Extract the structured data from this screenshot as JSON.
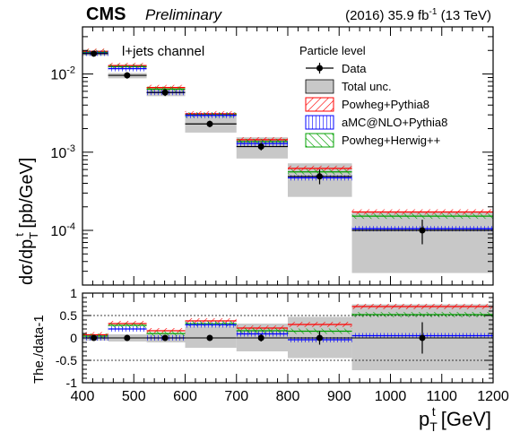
{
  "header": {
    "experiment": "CMS",
    "status": "Preliminary",
    "lumi_prefix": "(2016) 35.9 fb",
    "lumi_exp": "-1",
    "lumi_suffix": " (13 TeV)"
  },
  "colors": {
    "data": "#000000",
    "total_unc_fill": "#c8c8c8",
    "powheg_pythia8": "#ff0000",
    "amcatnlo_pythia8": "#0000ff",
    "powheg_herwig": "#00a000"
  },
  "chart_data": {
    "type": "bar",
    "channel_label": "l+jets channel",
    "legend_title": "Particle level",
    "legend_placement": "top-right",
    "xlabel": {
      "main": "p",
      "sub": "T",
      "sup": "t",
      "unit": " [GeV]"
    },
    "ylabel_top": "dσ/dp",
    "ylabel_top_sub": "T",
    "ylabel_top_sup": "t",
    "ylabel_top_unit": " [pb/GeV]",
    "ylabel_bottom": "The./data-1",
    "x_ticks": [
      "400",
      "500",
      "600",
      "700",
      "800",
      "900",
      "1000",
      "1100",
      "1200"
    ],
    "x_tick_values": [
      400,
      500,
      600,
      700,
      800,
      900,
      1000,
      1100,
      1200
    ],
    "xlim": [
      400,
      1200
    ],
    "y_top_scale": "log",
    "y_top_lim": [
      2e-05,
      0.04
    ],
    "y_top_ticks": [
      {
        "base": "10",
        "exp": "-2",
        "value": 0.01
      },
      {
        "base": "10",
        "exp": "-3",
        "value": 0.001
      },
      {
        "base": "10",
        "exp": "-4",
        "value": 0.0001
      }
    ],
    "y_bottom_lim": [
      -1,
      1
    ],
    "y_bottom_ticks": [
      "1",
      "0.5",
      "0",
      "-0.5",
      "-1"
    ],
    "y_bottom_tick_values": [
      1,
      0.5,
      0,
      -0.5,
      -1
    ],
    "bin_edges": [
      400,
      450,
      525,
      600,
      700,
      800,
      925,
      1200
    ],
    "data_x": [
      422,
      487,
      561,
      648,
      748,
      862,
      1062
    ],
    "data_y": [
      0.0182,
      0.0096,
      0.0058,
      0.0023,
      0.00118,
      0.00049,
      0.0001
    ],
    "total_unc_lo": [
      0.0171,
      0.0088,
      0.0052,
      0.00178,
      0.00083,
      0.000268,
      2.85e-05
    ],
    "total_unc_hi": [
      0.0193,
      0.0103,
      0.0064,
      0.0029,
      0.00155,
      0.00072,
      0.000175
    ],
    "data_err": [
      0.0006,
      0.0004,
      0.0003,
      0.0001,
      7e-05,
      8e-05,
      3e-05
    ],
    "series": [
      {
        "name": "Data",
        "style": "marker"
      },
      {
        "name": "Total unc.",
        "style": "band"
      },
      {
        "name": "Powheg+Pythia8",
        "values": [
          0.0195,
          0.0128,
          0.0067,
          0.0031,
          0.00144,
          0.00062,
          0.000172
        ]
      },
      {
        "name": "aMC@NLO+Pythia8",
        "values": [
          0.0184,
          0.0117,
          0.0058,
          0.00295,
          0.00129,
          0.00047,
          0.000105
        ]
      },
      {
        "name": "Powheg+Herwig++",
        "values": [
          0.0189,
          0.0124,
          0.0064,
          0.003,
          0.00137,
          0.00056,
          0.000152
        ]
      }
    ],
    "ratio": {
      "total_unc_lo": [
        -0.06,
        -0.08,
        -0.1,
        -0.22,
        -0.3,
        -0.45,
        -0.72
      ],
      "total_unc_hi": [
        0.06,
        0.08,
        0.1,
        0.26,
        0.32,
        0.47,
        0.75
      ],
      "data_err": [
        0.03,
        0.04,
        0.05,
        0.05,
        0.08,
        0.15,
        0.35
      ],
      "powheg_pythia8": [
        0.07,
        0.32,
        0.16,
        0.38,
        0.22,
        0.3,
        0.7
      ],
      "amcatnlo_pythia8": [
        0.0,
        0.2,
        0.0,
        0.29,
        0.09,
        -0.04,
        0.05
      ],
      "powheg_herwig": [
        0.04,
        0.28,
        0.1,
        0.32,
        0.16,
        0.15,
        0.52
      ]
    }
  }
}
